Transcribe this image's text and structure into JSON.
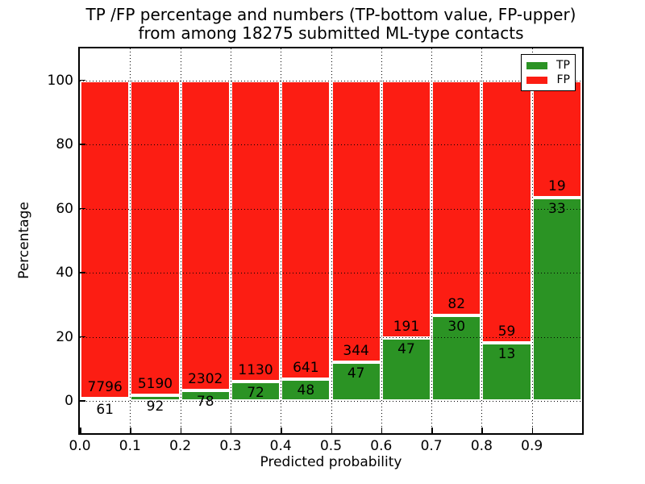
{
  "figure": {
    "title_line1": "TP /FP percentage and numbers (TP-bottom value, FP-upper)",
    "title_line2": "from among 18275 submitted ML-type contacts"
  },
  "colors": {
    "tp_green": "#2b9324",
    "fp_red": "#fc1d13",
    "bar_edge": "#ffffff",
    "grid": "#000000",
    "background": "#ffffff"
  },
  "chart_data": {
    "type": "bar",
    "stacked": true,
    "title": "TP /FP percentage and numbers (TP-bottom value, FP-upper)\nfrom among 18275 submitted ML-type contacts",
    "total_contacts": 18275,
    "xlabel": "Predicted probability",
    "ylabel": "Percentage",
    "xlim": [
      0.0,
      1.0
    ],
    "ylim": [
      -10,
      110
    ],
    "x_ticks": [
      0.0,
      0.1,
      0.2,
      0.3,
      0.4,
      0.5,
      0.6,
      0.7,
      0.8,
      0.9
    ],
    "x_tick_labels": [
      "0.0",
      "0.1",
      "0.2",
      "0.3",
      "0.4",
      "0.5",
      "0.6",
      "0.7",
      "0.8",
      "0.9"
    ],
    "y_ticks": [
      0,
      20,
      40,
      60,
      80,
      100
    ],
    "y_tick_labels": [
      "0",
      "20",
      "40",
      "60",
      "80",
      "100"
    ],
    "grid": "dotted black, horizontal and vertical, drawn over bars",
    "legend": {
      "position": "upper right",
      "entries": [
        {
          "label": "TP",
          "color": "#2b9324"
        },
        {
          "label": "FP",
          "color": "#fc1d13"
        }
      ]
    },
    "series": [
      {
        "name": "TP",
        "segment": "bottom",
        "counts": [
          61,
          92,
          78,
          72,
          48,
          47,
          47,
          30,
          13,
          33
        ]
      },
      {
        "name": "FP",
        "segment": "upper (stacked to 100%)",
        "counts": [
          7796,
          5190,
          2302,
          1130,
          641,
          344,
          191,
          82,
          59,
          19
        ]
      }
    ],
    "bins": [
      {
        "x_start": 0.0,
        "x_end": 0.1,
        "tp": 61,
        "fp": 7796,
        "tp_percent": 0.78
      },
      {
        "x_start": 0.1,
        "x_end": 0.2,
        "tp": 92,
        "fp": 5190,
        "tp_percent": 1.74
      },
      {
        "x_start": 0.2,
        "x_end": 0.3,
        "tp": 78,
        "fp": 2302,
        "tp_percent": 3.28
      },
      {
        "x_start": 0.3,
        "x_end": 0.4,
        "tp": 72,
        "fp": 1130,
        "tp_percent": 5.99
      },
      {
        "x_start": 0.4,
        "x_end": 0.5,
        "tp": 48,
        "fp": 641,
        "tp_percent": 6.97
      },
      {
        "x_start": 0.5,
        "x_end": 0.6,
        "tp": 47,
        "fp": 344,
        "tp_percent": 12.02
      },
      {
        "x_start": 0.6,
        "x_end": 0.7,
        "tp": 47,
        "fp": 191,
        "tp_percent": 19.75
      },
      {
        "x_start": 0.7,
        "x_end": 0.8,
        "tp": 30,
        "fp": 82,
        "tp_percent": 26.79
      },
      {
        "x_start": 0.8,
        "x_end": 0.9,
        "tp": 13,
        "fp": 59,
        "tp_percent": 18.06
      },
      {
        "x_start": 0.9,
        "x_end": 1.0,
        "tp": 33,
        "fp": 19,
        "tp_percent": 63.46
      }
    ]
  }
}
